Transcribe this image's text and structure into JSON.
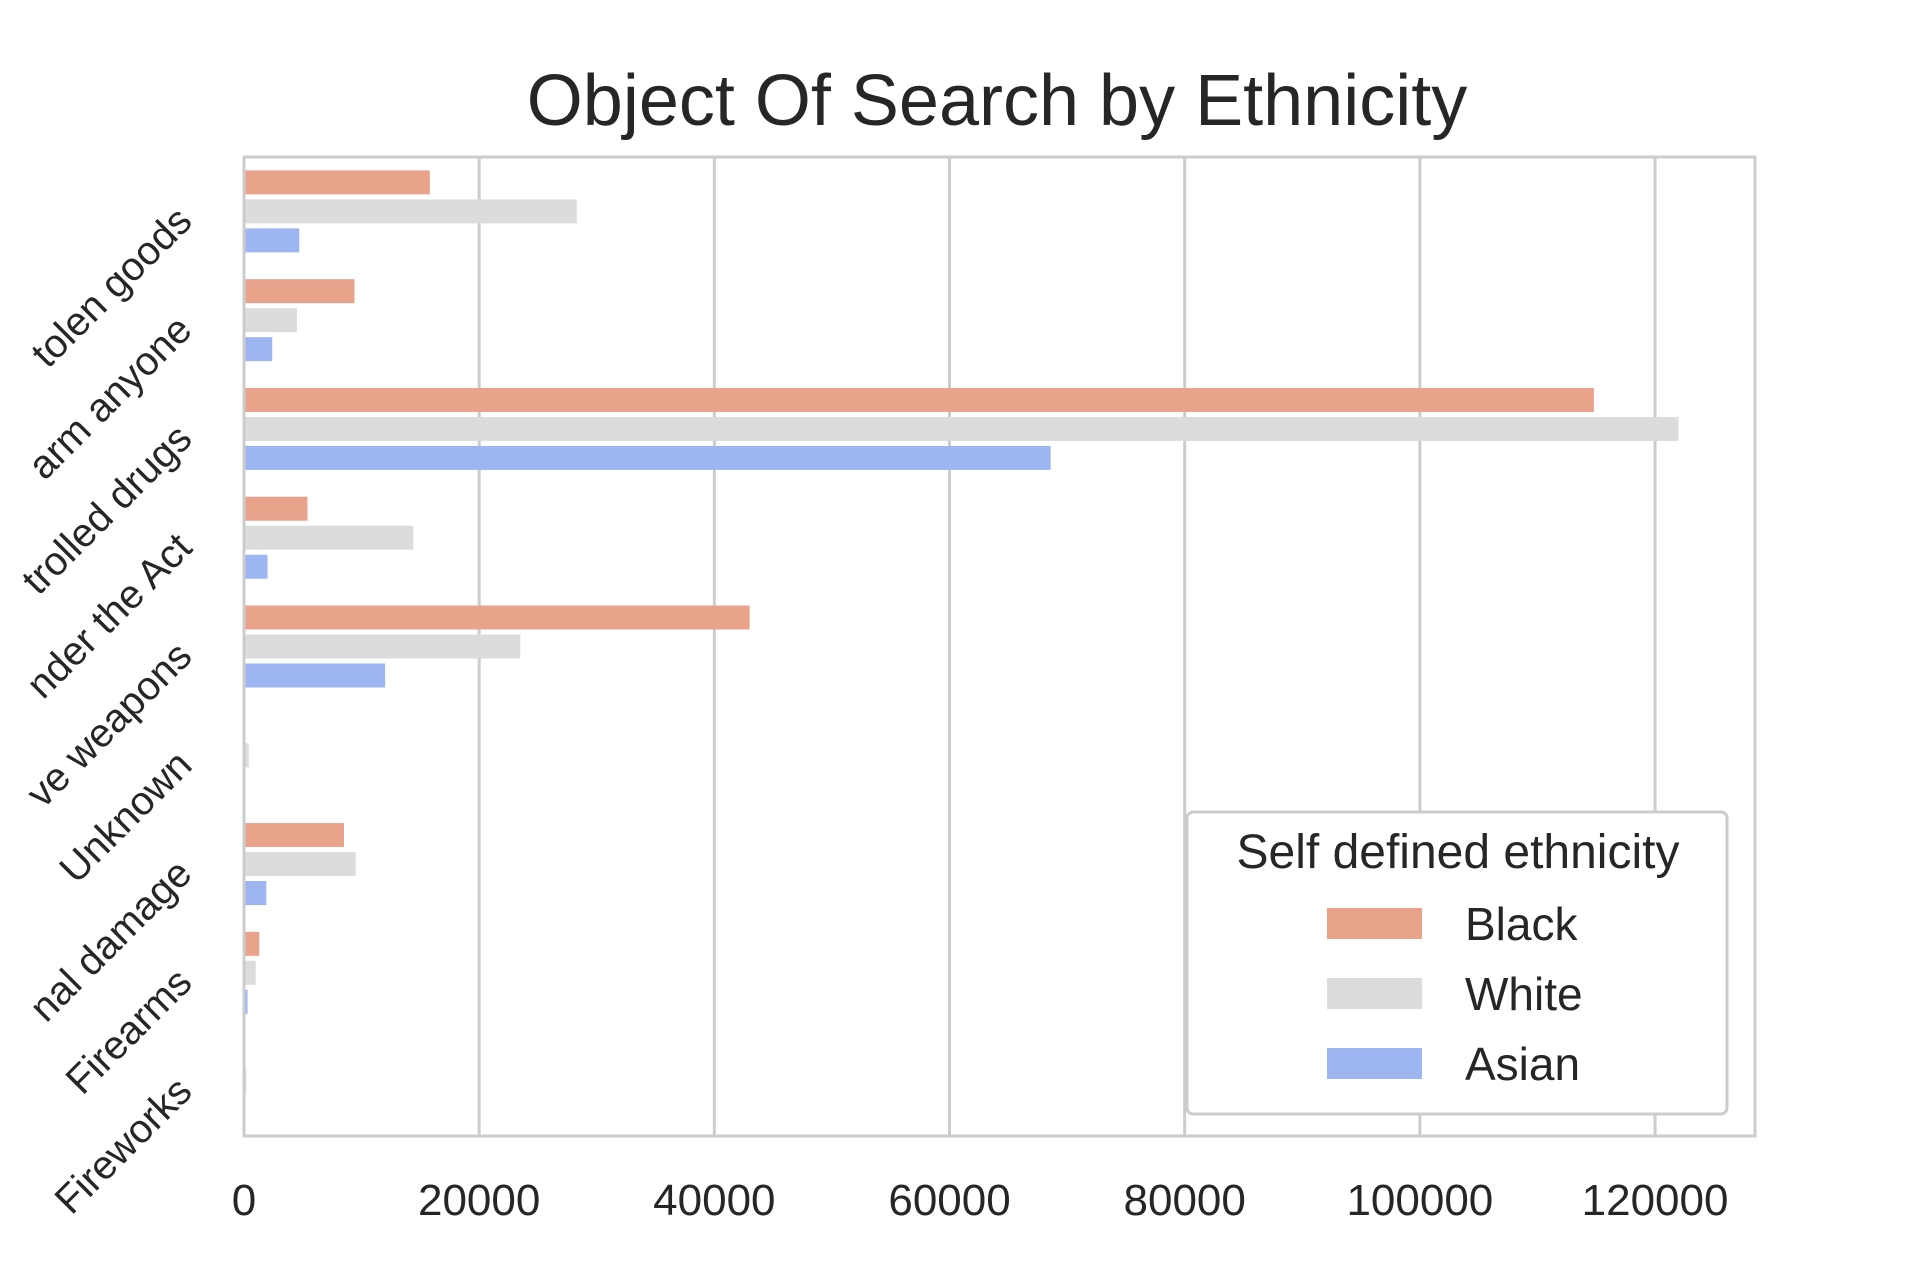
{
  "chart_data": {
    "type": "bar",
    "orientation": "horizontal",
    "title": "Object Of Search by Ethnicity",
    "xlabel": "",
    "ylabel": "",
    "categories": [
      "Stolen goods",
      "Articles for use in criminal damage... harm anyone",
      "Controlled drugs",
      "Evidence of offences under the Act",
      "Offensive weapons",
      "Unknown",
      "Articles for use in criminal damage",
      "Firearms",
      "Fireworks"
    ],
    "category_labels_visible": [
      "tolen goods",
      "arm anyone",
      "trolled drugs",
      "nder the Act",
      "ve weapons",
      "Unknown",
      "nal damage",
      "Firearms",
      "Fireworks"
    ],
    "series": [
      {
        "name": "Black",
        "color": "#e8a38a",
        "values": [
          15800,
          9400,
          114800,
          5400,
          43000,
          0,
          8500,
          1300,
          0
        ]
      },
      {
        "name": "White",
        "color": "#dcdcdc",
        "values": [
          28300,
          4500,
          122000,
          14400,
          23500,
          400,
          9500,
          1000,
          200
        ]
      },
      {
        "name": "Asian",
        "color": "#9db6f2",
        "values": [
          4700,
          2400,
          68600,
          2000,
          12000,
          0,
          1900,
          300,
          0
        ]
      }
    ],
    "xlim": [
      0,
      128500
    ],
    "xticks": [
      0,
      20000,
      40000,
      60000,
      80000,
      100000,
      120000
    ],
    "xtick_labels": [
      "0",
      "20000",
      "40000",
      "60000",
      "80000",
      "100000",
      "120000"
    ],
    "grid": "vertical",
    "legend": {
      "title": "Self defined ethnicity",
      "placement": "bottom-right"
    }
  }
}
